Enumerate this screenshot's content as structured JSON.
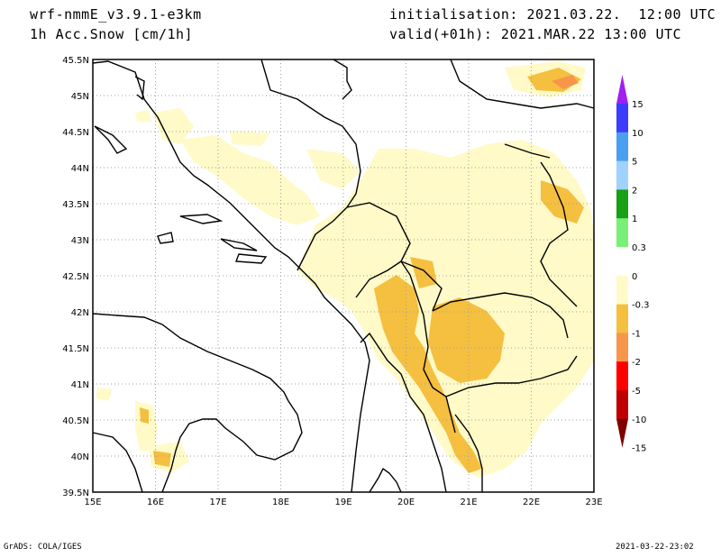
{
  "header": {
    "model": "wrf-nmmE_v3.9.1-e3km",
    "field": "1h Acc.Snow [cm/1h]",
    "init": "initialisation: 2021.03.22.  12:00 UTC",
    "valid": "valid(+01h): 2021.MAR.22 13:00 UTC"
  },
  "footer": {
    "left": "GrADS: COLA/IGES",
    "right": "2021-03-22-23:02"
  },
  "map": {
    "lon_labels": [
      "15E",
      "16E",
      "17E",
      "18E",
      "19E",
      "20E",
      "21E",
      "22E",
      "23E"
    ],
    "lat_labels": [
      "45.5N",
      "45N",
      "44.5N",
      "44N",
      "43.5N",
      "43N",
      "42.5N",
      "42N",
      "41.5N",
      "41N",
      "40.5N",
      "40N",
      "39.5N"
    ],
    "grid": true
  },
  "colorbar": {
    "labels": [
      "15",
      "10",
      "5",
      "2",
      "1",
      "0.3",
      "0",
      "-0.3",
      "-1",
      "-2",
      "-5",
      "-10",
      "-15"
    ],
    "colors": [
      "#a020f0",
      "#3c3cff",
      "#4aa0f0",
      "#a0d2ff",
      "#16a014",
      "#78f078",
      "#ffffff",
      "#fffac8",
      "#f5bf40",
      "#f7964a",
      "#ff0000",
      "#c00000",
      "#800000"
    ]
  }
}
